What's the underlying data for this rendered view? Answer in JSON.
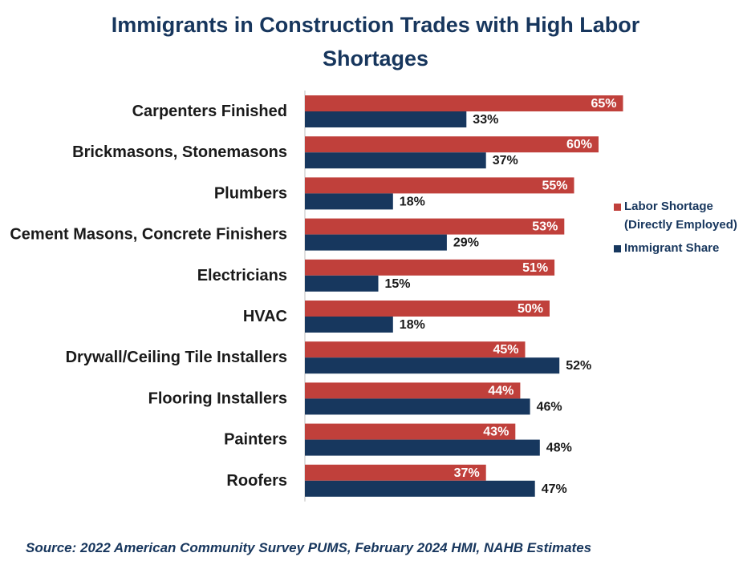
{
  "chart_data": {
    "type": "bar",
    "orientation": "horizontal",
    "title_lines": [
      "Immigrants in Construction Trades with High Labor",
      "Shortages"
    ],
    "categories": [
      "Carpenters Finished",
      "Brickmasons, Stonemasons",
      "Plumbers",
      "Cement Masons, Concrete Finishers",
      "Electricians",
      "HVAC",
      "Drywall/Ceiling Tile Installers",
      "Flooring Installers",
      "Painters",
      "Roofers"
    ],
    "series": [
      {
        "name": "Labor Shortage (Directly Employed)",
        "legend_lines": [
          "Labor Shortage",
          "(Directly Employed)"
        ],
        "color": "#c0403b",
        "values": [
          65,
          60,
          55,
          53,
          51,
          50,
          45,
          44,
          43,
          37
        ],
        "labels": [
          "65%",
          "60%",
          "55%",
          "53%",
          "51%",
          "50%",
          "45%",
          "44%",
          "43%",
          "37%"
        ]
      },
      {
        "name": "Immigrant Share",
        "legend_lines": [
          "Immigrant Share"
        ],
        "color": "#17375e",
        "values": [
          33,
          37,
          18,
          29,
          15,
          18,
          52,
          46,
          48,
          47
        ],
        "labels": [
          "33%",
          "37%",
          "18%",
          "29%",
          "15%",
          "18%",
          "52%",
          "46%",
          "48%",
          "47%"
        ]
      }
    ],
    "xlim": [
      0,
      100
    ],
    "legend_position": "right",
    "source": "Source:  2022 American Community Survey PUMS, February 2024 HMI, NAHB Estimates"
  }
}
